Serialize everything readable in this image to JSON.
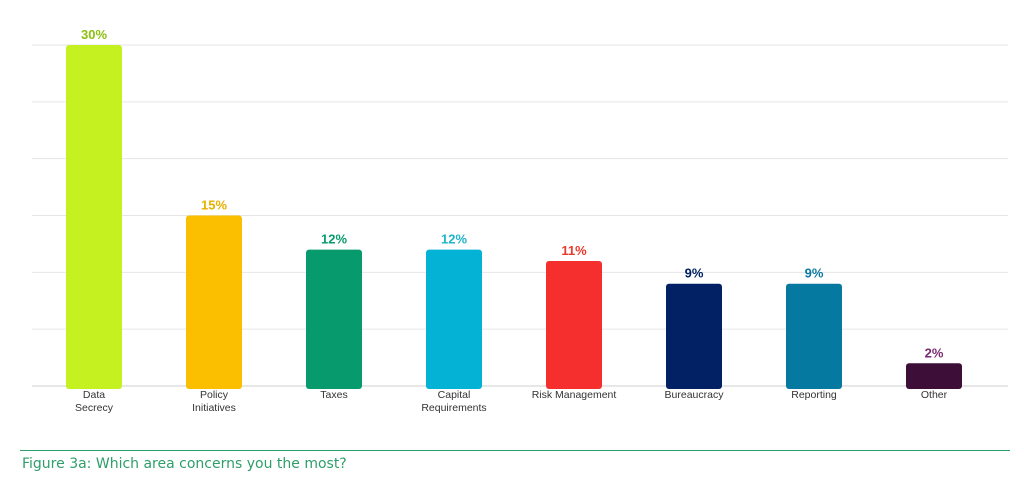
{
  "chart_data": {
    "type": "bar",
    "title": "",
    "xlabel": "",
    "ylabel": "",
    "ylim": [
      0,
      30
    ],
    "grid": true,
    "value_suffix": "%",
    "categories": [
      [
        "Data",
        "Secrecy"
      ],
      [
        "Policy",
        "Initiatives"
      ],
      [
        "Taxes"
      ],
      [
        "Capital",
        "Requirements"
      ],
      [
        "Risk Management"
      ],
      [
        "Bureaucracy"
      ],
      [
        "Reporting"
      ],
      [
        "Other"
      ]
    ],
    "values": [
      30,
      15,
      12,
      12,
      11,
      9,
      9,
      2
    ],
    "value_labels": [
      "30%",
      "15%",
      "12%",
      "12%",
      "11%",
      "9%",
      "9%",
      "2%"
    ],
    "colors": [
      "#c4f11f",
      "#fbbf00",
      "#079a6d",
      "#03b2d4",
      "#f42f2e",
      "#022164",
      "#05799f",
      "#3d0e38"
    ],
    "label_colors": [
      "#8cbf10",
      "#e8b000",
      "#079a6d",
      "#1fb3cc",
      "#e73a2b",
      "#022164",
      "#0c7aa2",
      "#7a2a6e"
    ]
  },
  "caption": "Figure 3a: Which area concerns you the most?"
}
